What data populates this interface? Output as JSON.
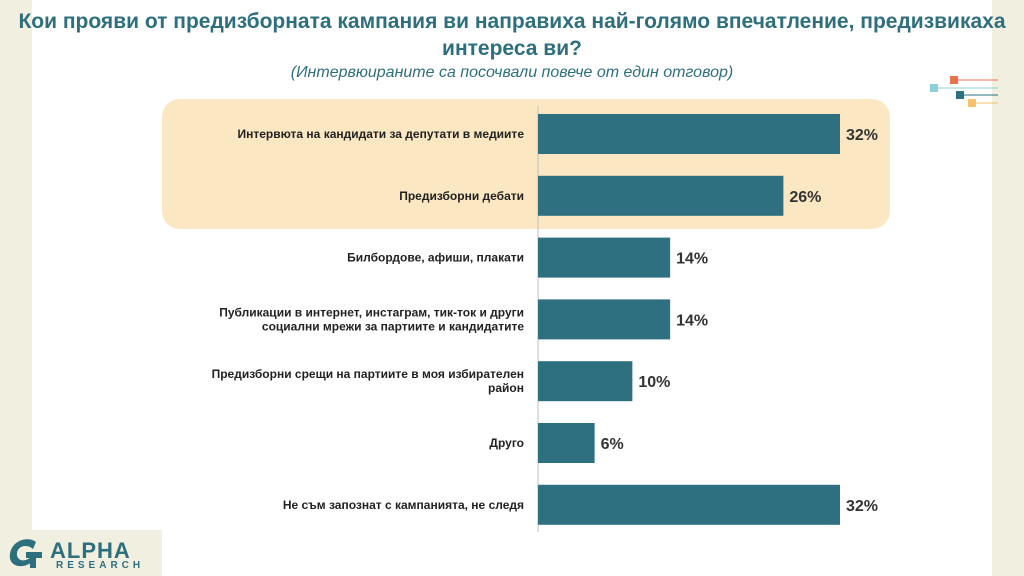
{
  "chart_data": {
    "type": "bar",
    "orientation": "horizontal",
    "title": "Кои прояви от предизборната кампания ви  направиха най-голямо впечатление, предизвикаха интереса ви?",
    "subtitle": "(Интервюираните са посочвали повече от един отговор)",
    "categories": [
      "Интервюта на кандидати за депутати в медиите",
      "Предизборни дебати",
      "Билбордове, афиши, плакати",
      "Публикации в интернет, инстаграм, тик-ток и други социални мрежи за партиите и кандидатите",
      "Предизборни срещи на партиите в моя избирателен район",
      "Друго",
      "Не съм запознат с кампанията, не следя"
    ],
    "category_lines": [
      [
        "Интервюта на кандидати за депутати в медиите"
      ],
      [
        "Предизборни дебати"
      ],
      [
        "Билбордове, афиши, плакати"
      ],
      [
        "Публикации в интернет, инстаграм, тик-ток и други",
        "социални мрежи за партиите и кандидатите"
      ],
      [
        "Предизборни срещи на партиите в моя избирателен",
        "район"
      ],
      [
        "Друго"
      ],
      [
        "Не съм запознат с кампанията, не следя"
      ]
    ],
    "values": [
      32,
      26,
      14,
      14,
      10,
      6,
      32
    ],
    "value_labels": [
      "32%",
      "26%",
      "14%",
      "14%",
      "10%",
      "6%",
      "32%"
    ],
    "highlighted_categories": [
      0,
      1
    ],
    "xlim": [
      0,
      32
    ],
    "grid": false,
    "legend": "none",
    "bar_color": "#2e7080",
    "highlight_color": "#fbe7c2"
  },
  "branding": {
    "logo_word": "ALPHA",
    "logo_sub": "RESEARCH",
    "accent_orange": "#e8734f",
    "accent_teal": "#2e7080",
    "accent_light_blue": "#8fd0d8",
    "accent_yellow": "#f5c16c"
  }
}
